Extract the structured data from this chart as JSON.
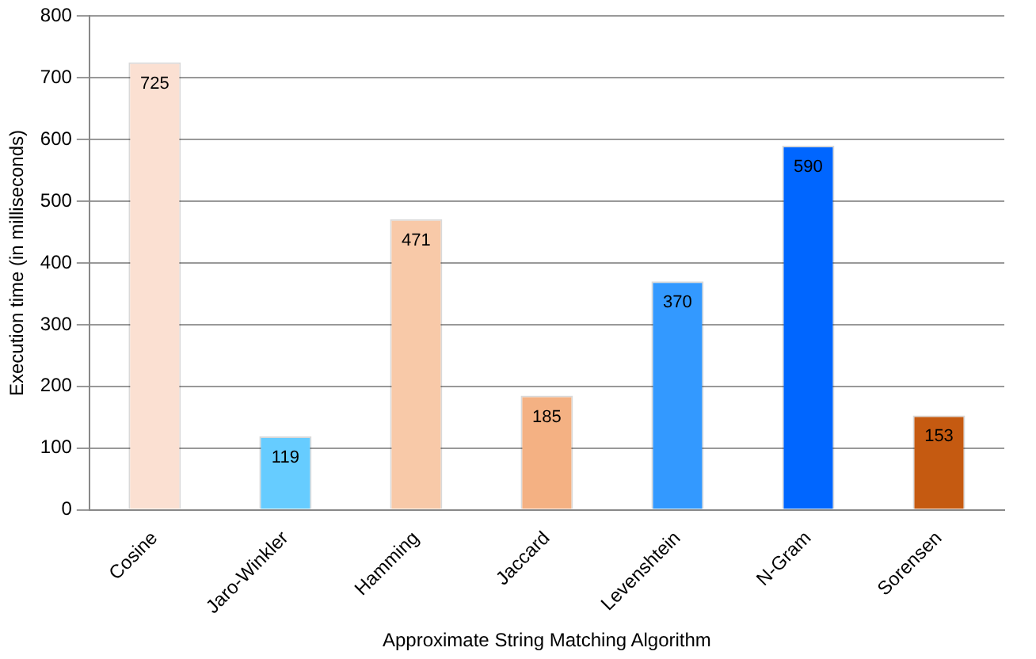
{
  "chart_data": {
    "type": "bar",
    "xlabel": "Approximate String Matching Algorithm",
    "ylabel": "Execution time (in milliseconds)",
    "categories": [
      "Cosine",
      "Jaro-Winkler",
      "Hamming",
      "Jaccard",
      "Levenshtein",
      "N-Gram",
      "Sorensen"
    ],
    "values": [
      725,
      119,
      471,
      185,
      370,
      590,
      153
    ],
    "colors": [
      "#fbe0d2",
      "#66ccff",
      "#f8c9a8",
      "#f4b183",
      "#3399ff",
      "#0066ff",
      "#c55a11"
    ],
    "ylim": [
      0,
      800
    ],
    "yticks": [
      0,
      100,
      200,
      300,
      400,
      500,
      600,
      700,
      800
    ],
    "grid": "y",
    "data_labels": true,
    "legend": false
  }
}
